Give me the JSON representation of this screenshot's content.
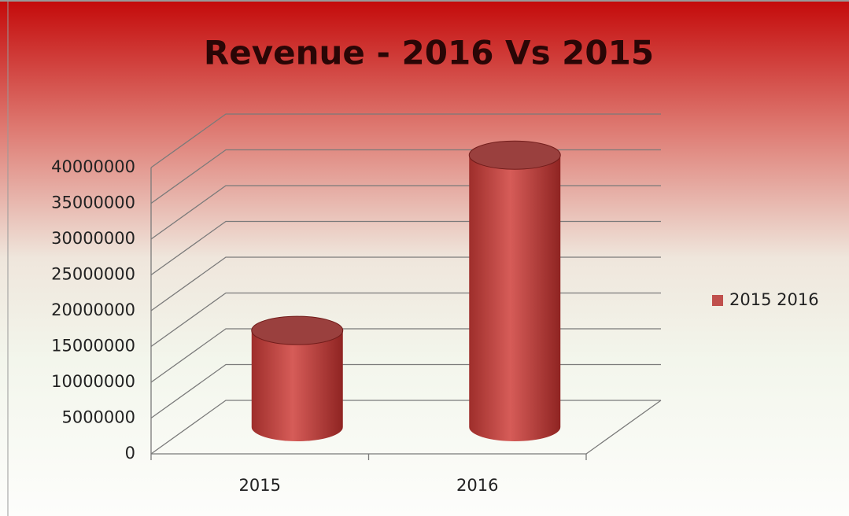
{
  "chart_data": {
    "type": "bar3d",
    "title": "Revenue - 2016 Vs 2015",
    "categories": [
      "2015",
      "2016"
    ],
    "series": [
      {
        "name": "2015 2016",
        "color": "#c0504d",
        "values": [
          13500000,
          38000000
        ]
      }
    ],
    "ylim": [
      0,
      40000000
    ],
    "yticks": [
      0,
      5000000,
      10000000,
      15000000,
      20000000,
      25000000,
      30000000,
      35000000,
      40000000
    ],
    "grid": true,
    "legend": "right"
  }
}
